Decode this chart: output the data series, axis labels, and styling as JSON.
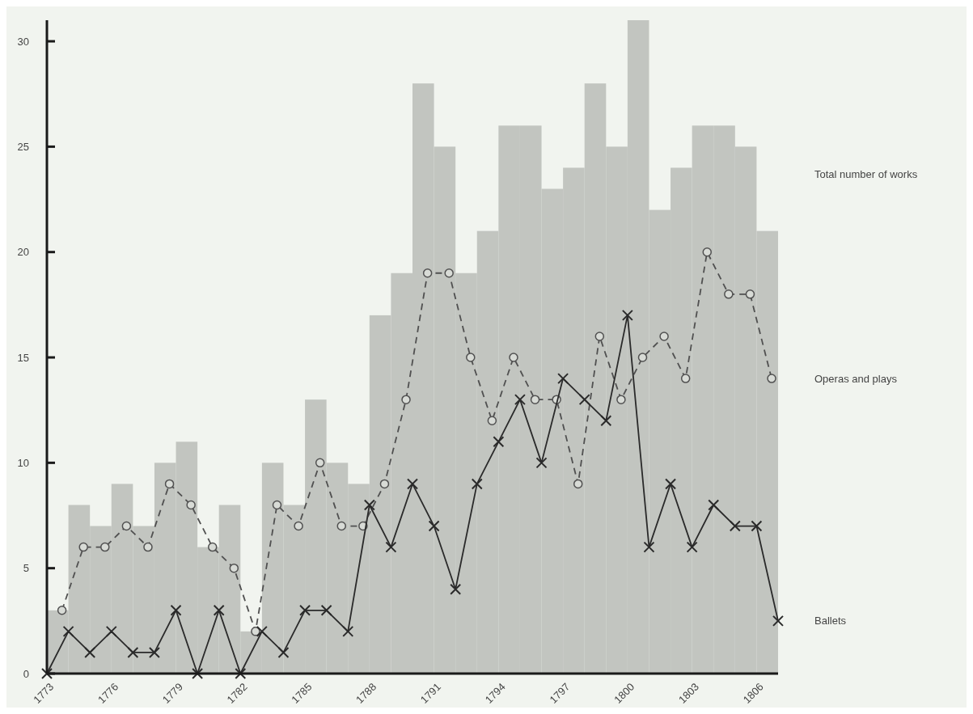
{
  "chart_data": {
    "type": "histogram",
    "bins": [
      1773,
      1774,
      1775,
      1776,
      1777,
      1778,
      1779,
      1780,
      1781,
      1782,
      1783,
      1784,
      1785,
      1786,
      1787,
      1788,
      1789,
      1790,
      1791,
      1792,
      1793,
      1794,
      1795,
      1796,
      1797,
      1798,
      1799,
      1800,
      1801,
      1802,
      1803,
      1804,
      1805,
      1806,
      1807
    ],
    "xlim": [
      1773,
      1807
    ],
    "xticks": [
      1773,
      1776,
      1779,
      1782,
      1785,
      1788,
      1791,
      1794,
      1797,
      1800,
      1803,
      1806
    ],
    "ylim": [
      0,
      31
    ],
    "yticks": [
      0,
      5,
      10,
      15,
      20,
      25,
      30
    ],
    "series": [
      {
        "name": "Total number of works",
        "color": "#c2c5c0",
        "values": [
          3,
          8,
          7,
          9,
          7,
          10,
          11,
          6,
          8,
          2,
          10,
          8,
          13,
          10,
          9,
          17,
          19,
          28,
          25,
          19,
          21,
          26,
          26,
          23,
          24,
          28,
          25,
          31,
          22,
          24,
          26,
          26,
          25,
          21
        ]
      },
      {
        "type": "line",
        "name": "Operas and plays",
        "color": "#505050",
        "marker": "circle",
        "line_style": "dashed",
        "x": [
          1773.7,
          1774.7,
          1775.7,
          1776.7,
          1777.7,
          1778.7,
          1779.7,
          1780.7,
          1781.7,
          1782.7,
          1783.7,
          1784.7,
          1785.7,
          1786.7,
          1787.7,
          1788.7,
          1789.7,
          1790.7,
          1791.7,
          1792.7,
          1793.7,
          1794.7,
          1795.7,
          1796.7,
          1797.7,
          1798.7,
          1799.7,
          1800.7,
          1801.7,
          1802.7,
          1803.7,
          1804.7,
          1805.7,
          1806.7
        ],
        "values": [
          3,
          6,
          6,
          7,
          6,
          9,
          8,
          6,
          5,
          2,
          8,
          7,
          10,
          7,
          7,
          9,
          13,
          19,
          19,
          15,
          12,
          15,
          13,
          13,
          9,
          16,
          13,
          15,
          16,
          14,
          20,
          18,
          18,
          14
        ]
      },
      {
        "type": "line",
        "name": "Ballets",
        "color": "#2a2a2a",
        "marker": "cross",
        "line_style": "solid",
        "x": [
          1773,
          1774,
          1775,
          1776,
          1777,
          1778,
          1779,
          1780,
          1781,
          1782,
          1783,
          1784,
          1785,
          1786,
          1787,
          1788,
          1789,
          1790,
          1791,
          1792,
          1793,
          1794,
          1795,
          1796,
          1797,
          1798,
          1799,
          1800,
          1801,
          1802,
          1803,
          1804,
          1805,
          1806,
          1807
        ],
        "values": [
          0,
          2,
          1,
          2,
          1,
          1,
          3,
          0,
          3,
          0,
          2,
          1,
          3,
          3,
          2,
          8,
          6,
          9,
          7,
          4,
          9,
          11,
          13,
          10,
          14,
          13,
          12,
          17,
          6,
          9,
          6,
          8,
          7,
          7,
          2.5
        ]
      }
    ]
  }
}
